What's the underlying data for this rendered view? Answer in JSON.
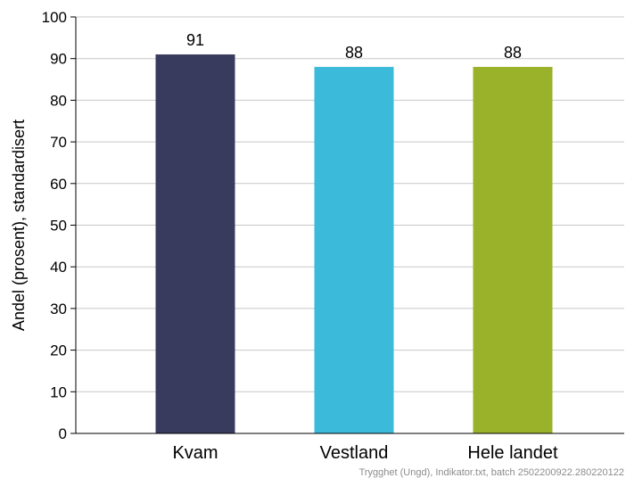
{
  "chart_data": {
    "type": "bar",
    "categories": [
      "Kvam",
      "Vestland",
      "Hele landet"
    ],
    "values": [
      91,
      88,
      88
    ],
    "value_labels": [
      "91",
      "88",
      "88"
    ],
    "colors": [
      "#393b5e",
      "#3bbad9",
      "#9ab12a"
    ],
    "ylabel": "Andel (prosent), standardisert",
    "xlabel": "",
    "ylim": [
      0,
      100
    ],
    "yticks": [
      0,
      10,
      20,
      30,
      40,
      50,
      60,
      70,
      80,
      90,
      100
    ],
    "grid": true,
    "gridline_color": "#c8c8c8",
    "footnote": "Trygghet (Ungd), Indikator.txt, batch 2502200922.280220122"
  }
}
